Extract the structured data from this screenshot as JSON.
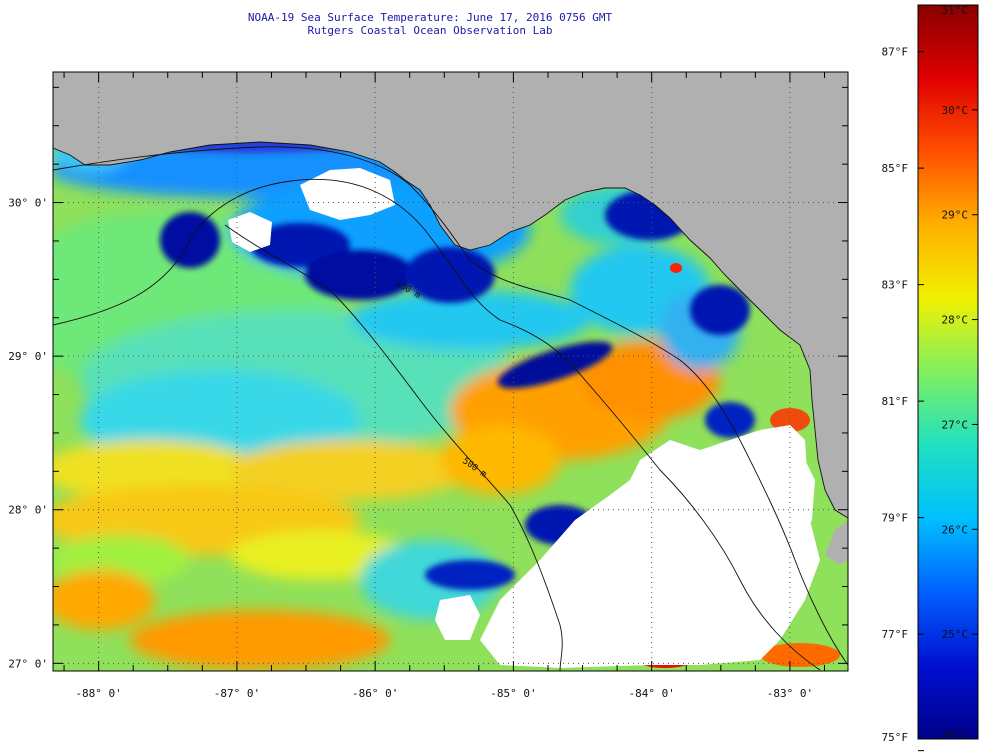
{
  "title": {
    "line1": "NOAA-19 Sea Surface Temperature:  June 17, 2016 0756 GMT",
    "line2": "Rutgers Coastal Ocean Observation Lab"
  },
  "map": {
    "lon_range": [
      -88.33,
      -82.58
    ],
    "lat_range": [
      26.95,
      30.85
    ],
    "lon_ticks": [
      {
        "value": -88,
        "label": "-88° 0'"
      },
      {
        "value": -87,
        "label": "-87° 0'"
      },
      {
        "value": -86,
        "label": "-86° 0'"
      },
      {
        "value": -85,
        "label": "-85° 0'"
      },
      {
        "value": -84,
        "label": "-84° 0'"
      },
      {
        "value": -83,
        "label": "-83° 0'"
      }
    ],
    "lat_ticks": [
      {
        "value": 30,
        "label": "30° 0'"
      },
      {
        "value": 29,
        "label": "29° 0'"
      },
      {
        "value": 28,
        "label": "28° 0'"
      },
      {
        "value": 27,
        "label": "27° 0'"
      }
    ],
    "isobath_labels": [
      "100 m",
      "500 m"
    ],
    "colors": {
      "land": "#b0b0b0",
      "cloud": "#ffffff",
      "sea_base": "#8fe05a",
      "grid": "#555555"
    }
  },
  "colorbar": {
    "min_c": 24,
    "max_c": 31,
    "celsius_ticks": [
      {
        "value": 24,
        "label": "24°C"
      },
      {
        "value": 25,
        "label": "25°C"
      },
      {
        "value": 26,
        "label": "26°C"
      },
      {
        "value": 27,
        "label": "27°C"
      },
      {
        "value": 28,
        "label": "28°C"
      },
      {
        "value": 29,
        "label": "29°C"
      },
      {
        "value": 30,
        "label": "30°C"
      },
      {
        "value": 31,
        "label": "31°C"
      }
    ],
    "fahrenheit_ticks": [
      {
        "value": 75,
        "label": "75°F"
      },
      {
        "value": 77,
        "label": "77°F"
      },
      {
        "value": 79,
        "label": "79°F"
      },
      {
        "value": 81,
        "label": "81°F"
      },
      {
        "value": 83,
        "label": "83°F"
      },
      {
        "value": 85,
        "label": "85°F"
      },
      {
        "value": 87,
        "label": "87°F"
      }
    ],
    "color_stops": [
      "#00008a",
      "#0010d0",
      "#0060ff",
      "#00c0ff",
      "#20e0c0",
      "#80f060",
      "#f0f000",
      "#ffb000",
      "#ff5000",
      "#e00000",
      "#880000"
    ]
  }
}
